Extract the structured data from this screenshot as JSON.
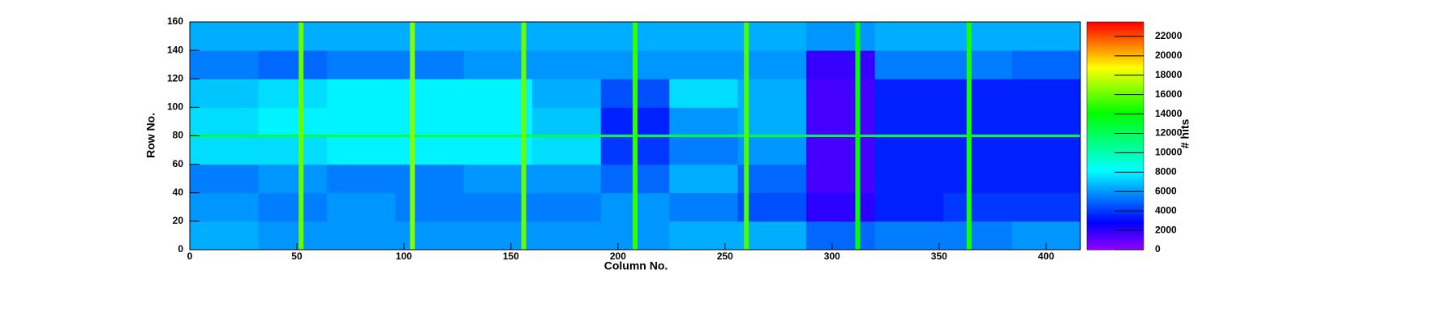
{
  "chart_data": {
    "type": "heatmap",
    "x_label": "Column No.",
    "y_label": "Row No.",
    "z_label": "# hits",
    "xlim": [
      0,
      416
    ],
    "ylim": [
      0,
      160
    ],
    "zlim": [
      0,
      23500
    ],
    "xticks": [
      0,
      50,
      100,
      150,
      200,
      250,
      300,
      350,
      400
    ],
    "yticks": [
      0,
      20,
      40,
      60,
      80,
      100,
      120,
      140,
      160
    ],
    "zticks": [
      0,
      2000,
      4000,
      6000,
      8000,
      10000,
      12000,
      14000,
      16000,
      18000,
      20000,
      22000
    ],
    "x_edges": [
      0,
      32,
      64,
      96,
      128,
      160,
      192,
      224,
      256,
      288,
      320,
      352,
      384,
      416
    ],
    "y_edges": [
      0,
      20,
      40,
      60,
      80,
      100,
      120,
      140,
      160
    ],
    "z": [
      [
        6500,
        6000,
        6000,
        6000,
        6000,
        6000,
        6000,
        6500,
        6500,
        5000,
        5500,
        5500,
        6000
      ],
      [
        6000,
        5500,
        6000,
        5500,
        5500,
        5500,
        6000,
        5500,
        4500,
        2000,
        3500,
        4000,
        4000
      ],
      [
        5500,
        6000,
        5500,
        5500,
        6000,
        6000,
        5000,
        6500,
        5000,
        1500,
        3500,
        3500,
        3500
      ],
      [
        7500,
        7500,
        8000,
        8000,
        8000,
        7500,
        4000,
        5500,
        6000,
        1500,
        3500,
        3500,
        3500
      ],
      [
        7500,
        8000,
        8000,
        8000,
        8000,
        7000,
        3500,
        6000,
        6500,
        1500,
        3500,
        3500,
        3500
      ],
      [
        7000,
        7500,
        8000,
        8000,
        8000,
        6500,
        4500,
        7500,
        6500,
        1500,
        3500,
        3500,
        3500
      ],
      [
        5500,
        5000,
        5500,
        5500,
        6000,
        6000,
        6000,
        6000,
        6000,
        1800,
        5500,
        5500,
        5000
      ],
      [
        6500,
        6500,
        6500,
        6500,
        6500,
        6500,
        6500,
        6500,
        6500,
        6000,
        6500,
        6500,
        6500
      ]
    ],
    "column_stripes": [
      {
        "x": 52,
        "value": 16000
      },
      {
        "x": 104,
        "value": 16500
      },
      {
        "x": 156,
        "value": 16000
      },
      {
        "x": 208,
        "value": 15000
      },
      {
        "x": 260,
        "value": 15500
      },
      {
        "x": 312,
        "value": 14000
      },
      {
        "x": 364,
        "value": 14500
      }
    ],
    "row_stripes": [
      {
        "y": 80,
        "value": 13000
      }
    ]
  }
}
